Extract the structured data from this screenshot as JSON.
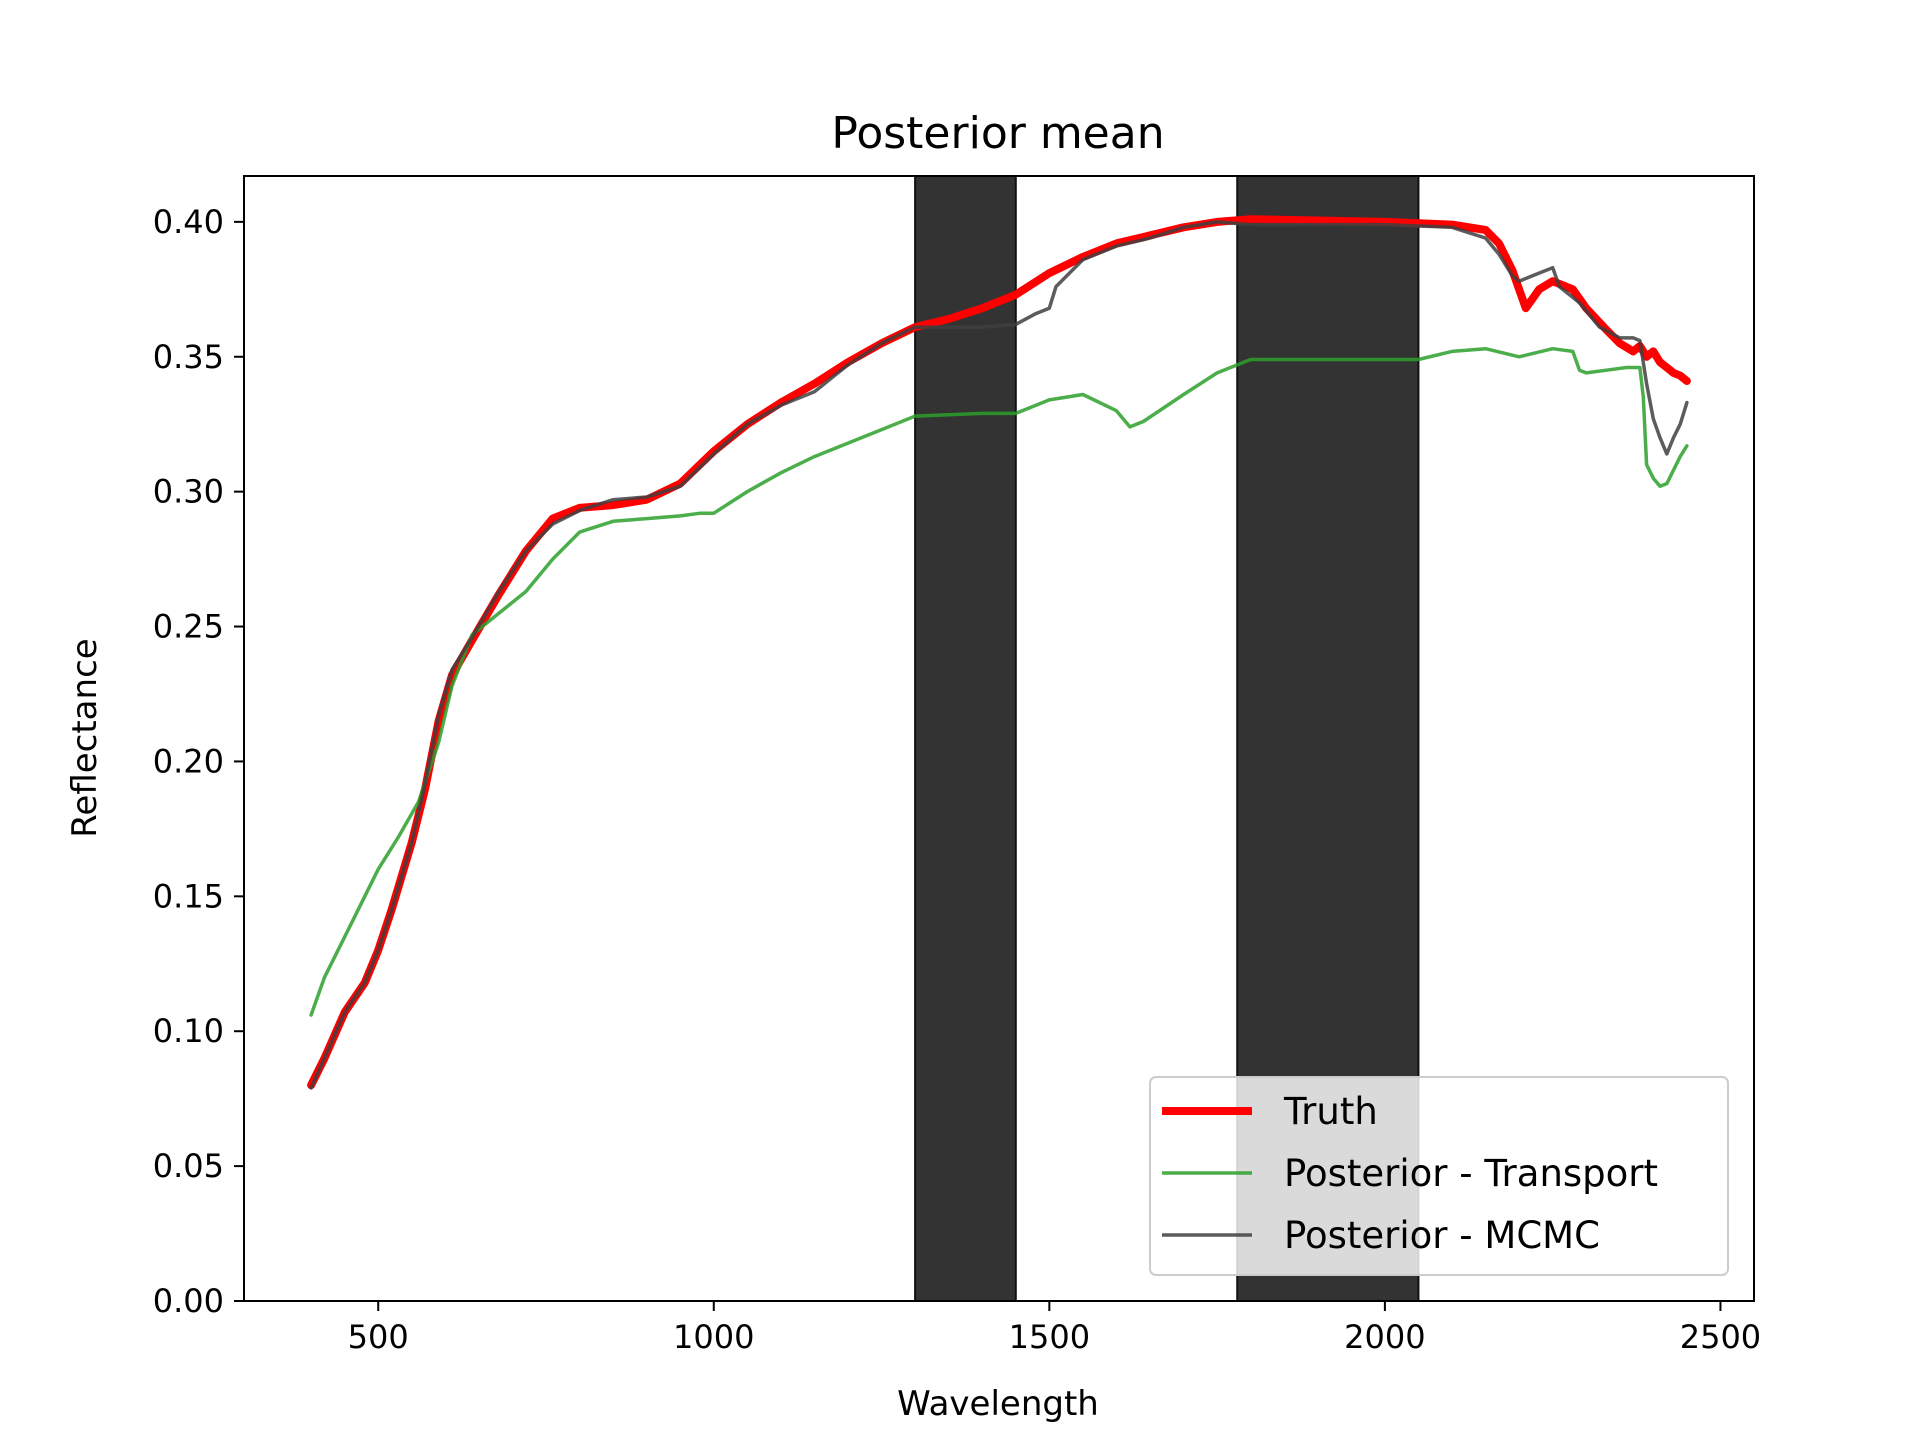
{
  "chart_data": {
    "type": "line",
    "title": "Posterior mean",
    "xlabel": "Wavelength",
    "ylabel": "Reflectance",
    "xlim": [
      300,
      2550
    ],
    "ylim": [
      0.0,
      0.417
    ],
    "xticks": [
      500,
      1000,
      1500,
      2000,
      2500
    ],
    "yticks": [
      0.0,
      0.05,
      0.1,
      0.15,
      0.2,
      0.25,
      0.3,
      0.35,
      0.4
    ],
    "grid": false,
    "legend_position": "lower-right",
    "shaded_bands": [
      {
        "x0": 1300,
        "x1": 1450,
        "color": "#333333"
      },
      {
        "x0": 1780,
        "x1": 2050,
        "color": "#333333"
      }
    ],
    "series": [
      {
        "name": "Truth",
        "color": "#ff0000",
        "style": "thick",
        "x": [
          400,
          420,
          450,
          480,
          500,
          520,
          550,
          570,
          590,
          610,
          640,
          680,
          720,
          760,
          800,
          850,
          900,
          950,
          1000,
          1050,
          1100,
          1150,
          1200,
          1250,
          1300,
          1350,
          1400,
          1450,
          1500,
          1550,
          1600,
          1650,
          1700,
          1750,
          1800,
          1900,
          2000,
          2100,
          2150,
          2170,
          2190,
          2200,
          2210,
          2230,
          2250,
          2280,
          2300,
          2330,
          2350,
          2370,
          2380,
          2390,
          2400,
          2410,
          2420,
          2430,
          2440,
          2450
        ],
        "y": [
          0.08,
          0.09,
          0.107,
          0.118,
          0.13,
          0.145,
          0.17,
          0.19,
          0.215,
          0.232,
          0.245,
          0.262,
          0.278,
          0.29,
          0.294,
          0.295,
          0.297,
          0.303,
          0.315,
          0.325,
          0.333,
          0.34,
          0.348,
          0.355,
          0.361,
          0.364,
          0.368,
          0.373,
          0.381,
          0.387,
          0.392,
          0.395,
          0.398,
          0.4,
          0.401,
          0.4005,
          0.4,
          0.399,
          0.397,
          0.392,
          0.382,
          0.375,
          0.368,
          0.375,
          0.378,
          0.375,
          0.368,
          0.36,
          0.355,
          0.352,
          0.354,
          0.35,
          0.352,
          0.348,
          0.346,
          0.344,
          0.343,
          0.341
        ]
      },
      {
        "name": "Posterior - Transport",
        "color": "#2ca02c",
        "style": "thin",
        "x": [
          400,
          420,
          450,
          480,
          500,
          530,
          560,
          590,
          610,
          640,
          680,
          720,
          760,
          800,
          850,
          900,
          950,
          980,
          1000,
          1050,
          1100,
          1150,
          1200,
          1250,
          1300,
          1350,
          1400,
          1450,
          1500,
          1550,
          1600,
          1620,
          1640,
          1700,
          1750,
          1800,
          1900,
          2000,
          2050,
          2100,
          2150,
          2200,
          2250,
          2280,
          2290,
          2300,
          2330,
          2360,
          2380,
          2385,
          2390,
          2400,
          2410,
          2420,
          2430,
          2440,
          2450
        ],
        "y": [
          0.106,
          0.12,
          0.135,
          0.15,
          0.16,
          0.172,
          0.185,
          0.207,
          0.228,
          0.247,
          0.255,
          0.263,
          0.275,
          0.285,
          0.289,
          0.29,
          0.291,
          0.292,
          0.292,
          0.3,
          0.307,
          0.313,
          0.318,
          0.323,
          0.328,
          0.3285,
          0.329,
          0.329,
          0.334,
          0.336,
          0.33,
          0.324,
          0.326,
          0.336,
          0.344,
          0.349,
          0.349,
          0.349,
          0.349,
          0.352,
          0.353,
          0.35,
          0.353,
          0.352,
          0.345,
          0.344,
          0.345,
          0.346,
          0.346,
          0.335,
          0.31,
          0.305,
          0.302,
          0.303,
          0.308,
          0.313,
          0.317
        ]
      },
      {
        "name": "Posterior - MCMC",
        "color": "#404040",
        "style": "thin",
        "x": [
          400,
          420,
          450,
          480,
          500,
          520,
          550,
          570,
          590,
          610,
          640,
          680,
          720,
          760,
          800,
          850,
          900,
          950,
          1000,
          1050,
          1100,
          1150,
          1200,
          1250,
          1300,
          1350,
          1400,
          1450,
          1480,
          1500,
          1510,
          1550,
          1600,
          1650,
          1700,
          1750,
          1800,
          1900,
          2000,
          2100,
          2150,
          2170,
          2190,
          2200,
          2220,
          2240,
          2250,
          2260,
          2290,
          2320,
          2350,
          2370,
          2380,
          2390,
          2400,
          2410,
          2420,
          2430,
          2440,
          2450
        ],
        "y": [
          0.079,
          0.09,
          0.107,
          0.118,
          0.13,
          0.145,
          0.17,
          0.192,
          0.217,
          0.234,
          0.246,
          0.263,
          0.278,
          0.288,
          0.293,
          0.297,
          0.298,
          0.302,
          0.314,
          0.325,
          0.332,
          0.337,
          0.347,
          0.355,
          0.361,
          0.361,
          0.361,
          0.362,
          0.366,
          0.368,
          0.376,
          0.386,
          0.391,
          0.394,
          0.398,
          0.4,
          0.399,
          0.399,
          0.399,
          0.398,
          0.394,
          0.388,
          0.38,
          0.378,
          0.38,
          0.382,
          0.383,
          0.376,
          0.37,
          0.361,
          0.357,
          0.357,
          0.356,
          0.34,
          0.327,
          0.32,
          0.314,
          0.32,
          0.325,
          0.333
        ]
      }
    ]
  }
}
